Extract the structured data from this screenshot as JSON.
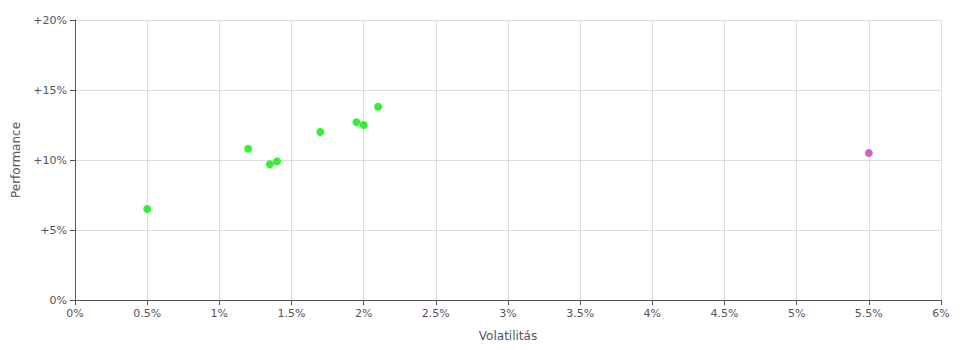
{
  "chart_data": {
    "type": "scatter",
    "xlabel": "Volatilitás",
    "ylabel": "Performance",
    "xlim": [
      0.0,
      0.06
    ],
    "ylim": [
      0.0,
      0.2
    ],
    "xticks": [
      {
        "value": 0.0,
        "label": "0%"
      },
      {
        "value": 0.005,
        "label": "0.5%"
      },
      {
        "value": 0.01,
        "label": "1%"
      },
      {
        "value": 0.015,
        "label": "1.5%"
      },
      {
        "value": 0.02,
        "label": "2%"
      },
      {
        "value": 0.025,
        "label": "2.5%"
      },
      {
        "value": 0.03,
        "label": "3%"
      },
      {
        "value": 0.035,
        "label": "3.5%"
      },
      {
        "value": 0.04,
        "label": "4%"
      },
      {
        "value": 0.045,
        "label": "4.5%"
      },
      {
        "value": 0.05,
        "label": "5%"
      },
      {
        "value": 0.055,
        "label": "5.5%"
      },
      {
        "value": 0.06,
        "label": "6%"
      }
    ],
    "yticks": [
      {
        "value": 0.0,
        "label": "0%"
      },
      {
        "value": 0.05,
        "label": "+5%"
      },
      {
        "value": 0.1,
        "label": "+10%"
      },
      {
        "value": 0.15,
        "label": "+15%"
      },
      {
        "value": 0.2,
        "label": "+20%"
      }
    ],
    "grid": true,
    "series": [
      {
        "color": "#00ee00",
        "x": [
          0.005,
          0.012,
          0.0135,
          0.014,
          0.017,
          0.0195,
          0.02,
          0.021
        ],
        "values": [
          0.065,
          0.108,
          0.097,
          0.099,
          0.12,
          0.127,
          0.125,
          0.138
        ]
      },
      {
        "color": "#bb44bb",
        "x": [
          0.055
        ],
        "values": [
          0.105
        ]
      }
    ]
  }
}
